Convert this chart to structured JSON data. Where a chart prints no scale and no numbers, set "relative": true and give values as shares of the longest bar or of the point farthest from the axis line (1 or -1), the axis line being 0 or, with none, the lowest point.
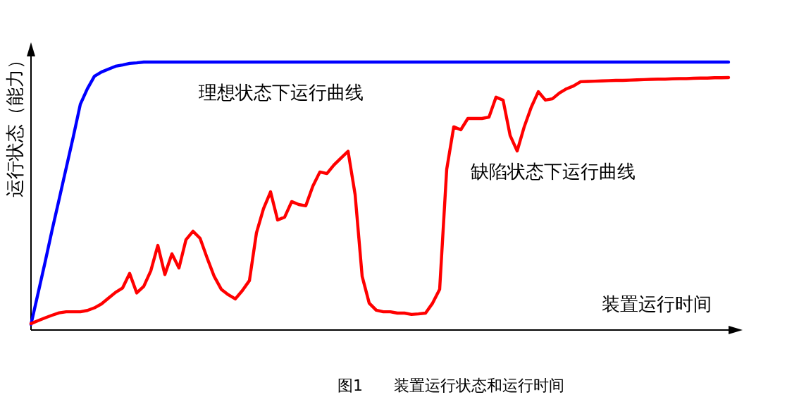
{
  "chart_data": {
    "type": "line",
    "relative": true,
    "ylabel": "运行状态（能力）",
    "xlabel": "装置运行时间",
    "annotations": [
      "图1　　装置运行状态和运行时间"
    ],
    "legend": false,
    "marker": "none",
    "line_style": "solid",
    "categories": [
      null,
      null,
      null,
      null,
      null,
      null,
      null,
      null,
      null,
      null,
      null,
      null,
      null,
      null,
      null,
      null,
      null,
      null,
      null,
      null,
      null,
      null,
      null,
      null,
      null,
      null,
      null,
      null,
      null,
      null,
      null,
      null,
      null,
      null,
      null,
      null,
      null,
      null,
      null,
      null,
      null,
      null,
      null,
      null,
      null,
      null,
      null,
      null,
      null,
      null,
      null,
      null,
      null,
      null,
      null,
      null,
      null,
      null,
      null,
      null,
      null,
      null,
      null,
      null,
      null,
      null,
      null,
      null,
      null,
      null,
      null,
      null,
      null,
      null,
      null,
      null,
      null,
      null,
      null,
      null,
      null,
      null,
      null,
      null,
      null,
      null,
      null,
      null,
      null,
      null,
      null,
      null,
      null,
      null,
      null,
      null,
      null,
      null,
      null,
      null
    ],
    "series": [
      {
        "name": "理想状态下运行曲线",
        "color": "#0000ff",
        "values": [
          0,
          0.118,
          0.237,
          0.36,
          0.478,
          0.597,
          0.715,
          0.839,
          0.898,
          0.946,
          0.962,
          0.973,
          0.984,
          0.989,
          0.995,
          0.997,
          1,
          1,
          1,
          1,
          1,
          1,
          1,
          1,
          1,
          1,
          1,
          1,
          1,
          1,
          1,
          1,
          1,
          1,
          1,
          1,
          1,
          1,
          1,
          1,
          1,
          1,
          1,
          1,
          1,
          1,
          1,
          1,
          1,
          1,
          1,
          1,
          1,
          1,
          1,
          1,
          1,
          1,
          1,
          1,
          1,
          1,
          1,
          1,
          1,
          1,
          1,
          1,
          1,
          1,
          1,
          1,
          1,
          1,
          1,
          1,
          1,
          1,
          1,
          1,
          1,
          1,
          1,
          1,
          1,
          1,
          1,
          1,
          1,
          1,
          1,
          1,
          1,
          1,
          1,
          1,
          1,
          1,
          1,
          1
        ]
      },
      {
        "name": "缺陷状态下运行曲线",
        "color": "#ff0000",
        "values": [
          0.003,
          0.014,
          0.025,
          0.035,
          0.044,
          0.048,
          0.048,
          0.048,
          0.053,
          0.063,
          0.078,
          0.1,
          0.122,
          0.139,
          0.194,
          0.12,
          0.145,
          0.204,
          0.301,
          0.19,
          0.269,
          0.215,
          0.323,
          0.355,
          0.328,
          0.253,
          0.183,
          0.134,
          0.113,
          0.097,
          0.129,
          0.167,
          0.349,
          0.441,
          0.505,
          0.398,
          0.409,
          0.468,
          0.457,
          0.452,
          0.527,
          0.581,
          0.575,
          0.608,
          0.634,
          0.66,
          0.495,
          0.183,
          0.081,
          0.054,
          0.048,
          0.048,
          0.043,
          0.043,
          0.038,
          0.04,
          0.043,
          0.081,
          0.134,
          0.591,
          0.753,
          0.742,
          0.785,
          0.785,
          0.785,
          0.79,
          0.866,
          0.855,
          0.72,
          0.661,
          0.753,
          0.828,
          0.887,
          0.855,
          0.86,
          0.882,
          0.898,
          0.909,
          0.925,
          0.926,
          0.927,
          0.928,
          0.929,
          0.93,
          0.93,
          0.931,
          0.932,
          0.933,
          0.934,
          0.935,
          0.935,
          0.936,
          0.937,
          0.937,
          0.938,
          0.939,
          0.939,
          0.94,
          0.94,
          0.941
        ]
      }
    ]
  }
}
